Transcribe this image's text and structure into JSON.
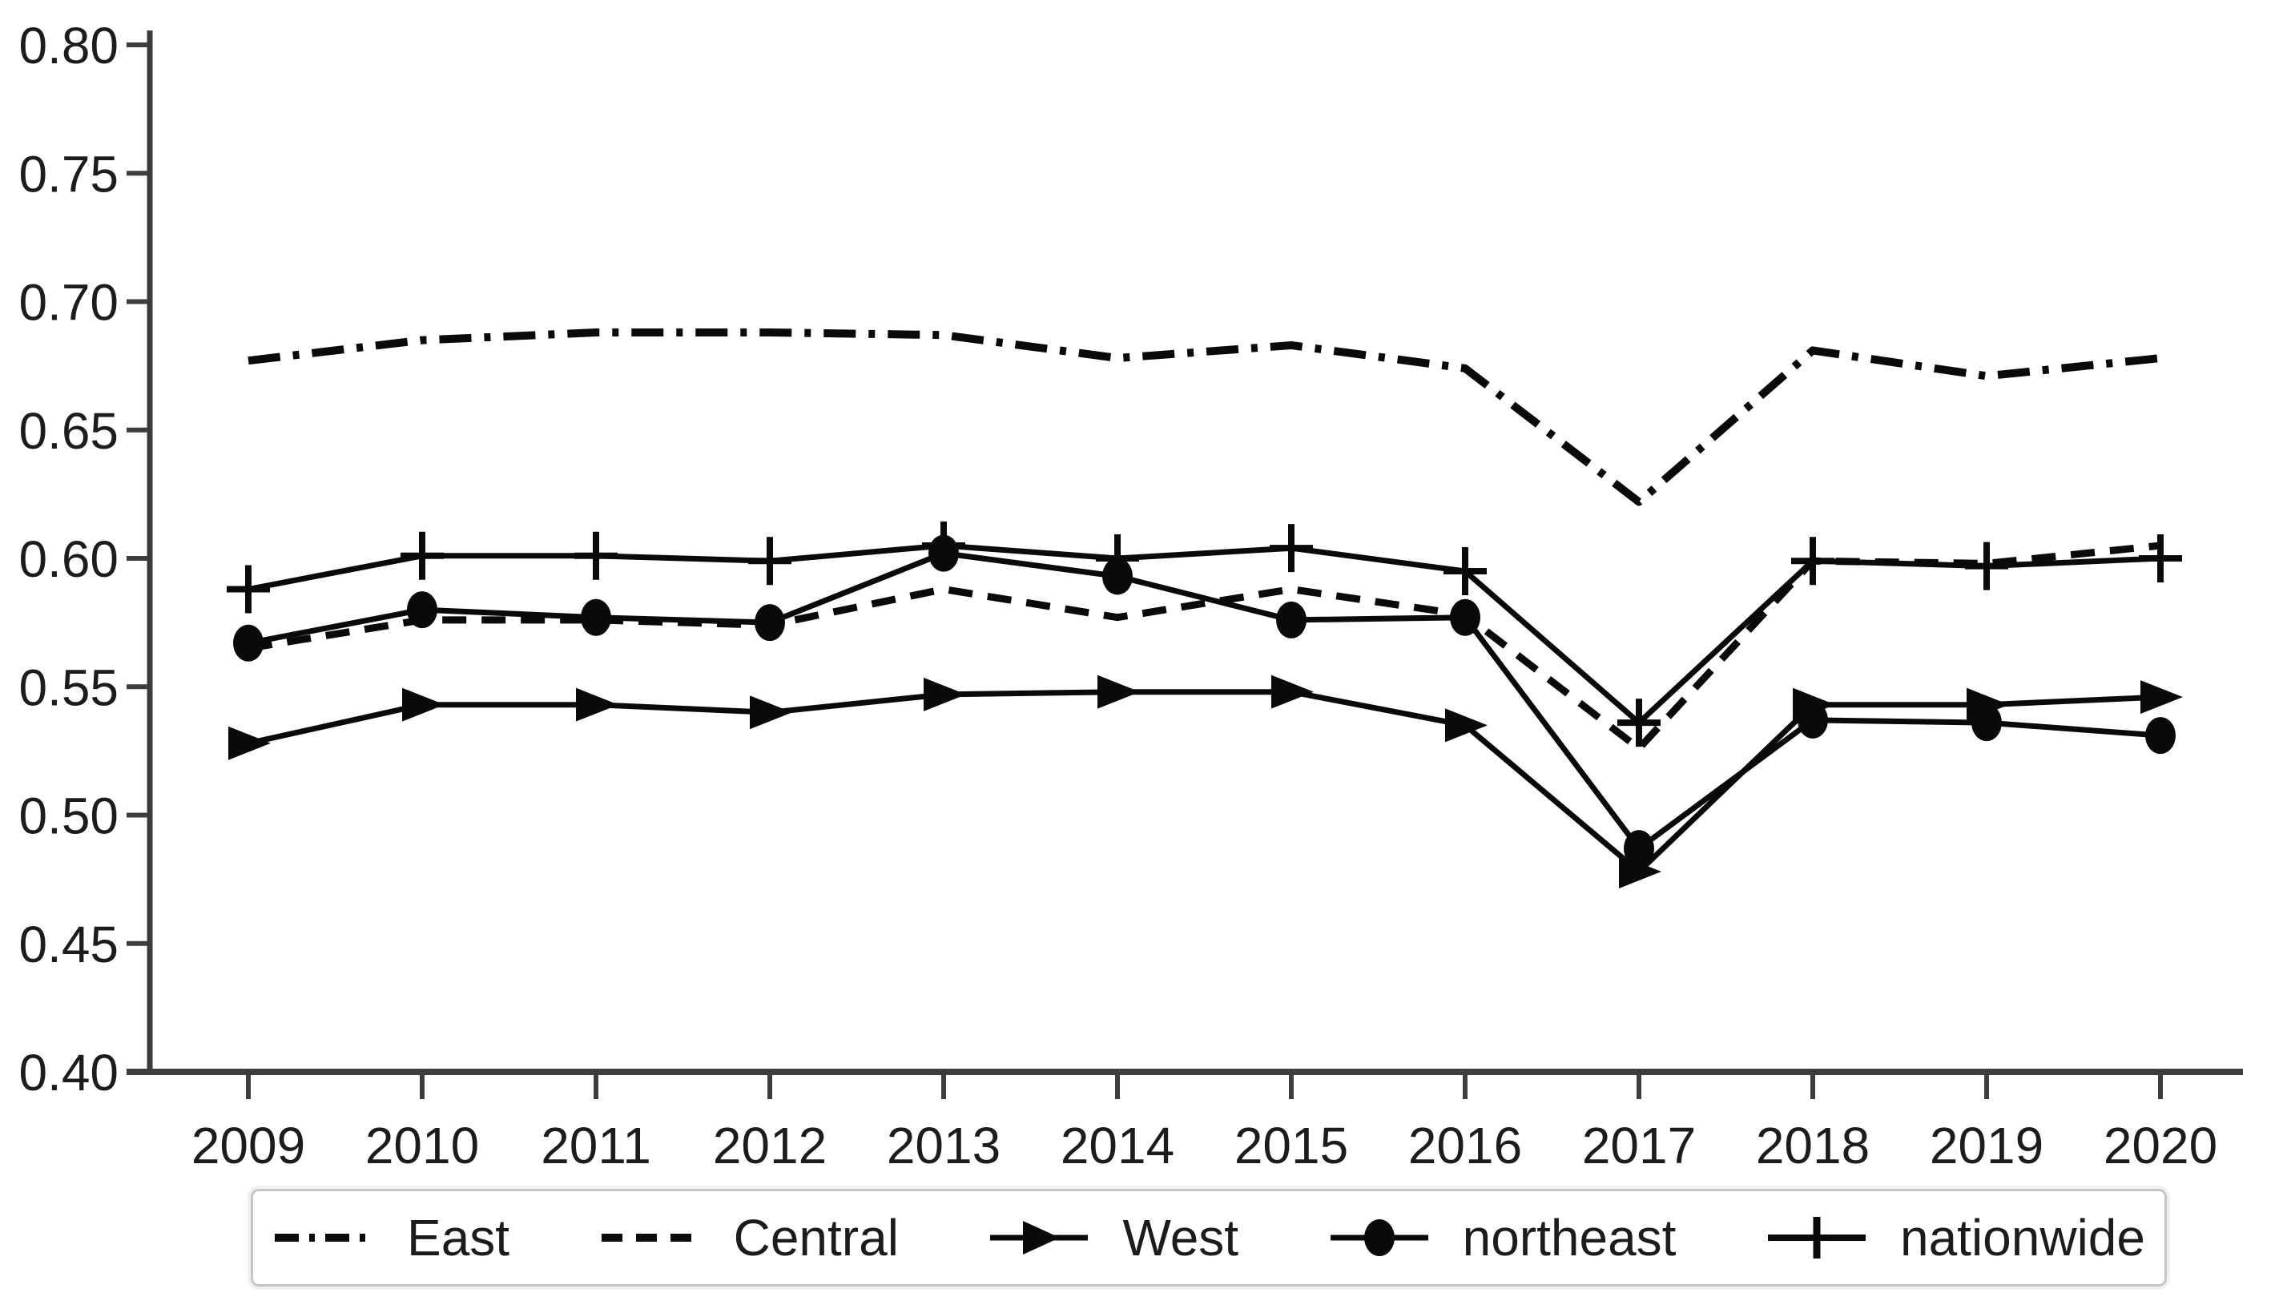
{
  "figure": {
    "title": "",
    "background": "#ffffff"
  },
  "colors": {
    "series_line": "#0a0a0a",
    "axis_line": "#3d3d3d",
    "tick_text": "#1c1c1c",
    "legend_border": "#c6c6c6"
  },
  "legend": {
    "position": "bottom",
    "items": [
      {
        "label": "East",
        "icon": "dash-dot-line-icon"
      },
      {
        "label": "Central",
        "icon": "dashed-line-icon"
      },
      {
        "label": "West",
        "icon": "triangle-right-icon"
      },
      {
        "label": "northeast",
        "icon": "circle-icon"
      },
      {
        "label": "nationwide",
        "icon": "plus-icon"
      }
    ]
  },
  "chart_data": {
    "type": "line",
    "title": "",
    "xlabel": "",
    "ylabel": "",
    "x": [
      2009,
      2010,
      2011,
      2012,
      2013,
      2014,
      2015,
      2016,
      2017,
      2018,
      2019,
      2020
    ],
    "ylim": [
      0.4,
      0.8
    ],
    "y_ticks": [
      0.4,
      0.45,
      0.5,
      0.55,
      0.6,
      0.65,
      0.7,
      0.75,
      0.8
    ],
    "grid": false,
    "legend_position": "bottom",
    "series": [
      {
        "name": "East",
        "style": "dash-dot",
        "marker": "none",
        "values": [
          0.677,
          0.685,
          0.688,
          0.688,
          0.687,
          0.678,
          0.683,
          0.674,
          0.622,
          0.681,
          0.671,
          0.678
        ]
      },
      {
        "name": "Central",
        "style": "dashed",
        "marker": "none",
        "values": [
          0.565,
          0.576,
          0.576,
          0.574,
          0.588,
          0.577,
          0.588,
          0.578,
          0.526,
          0.599,
          0.598,
          0.605
        ]
      },
      {
        "name": "West",
        "style": "solid",
        "marker": "triangle-right",
        "values": [
          0.528,
          0.543,
          0.543,
          0.54,
          0.547,
          0.548,
          0.548,
          0.535,
          0.478,
          0.543,
          0.543,
          0.546
        ]
      },
      {
        "name": "northeast",
        "style": "solid",
        "marker": "circle",
        "values": [
          0.567,
          0.58,
          0.577,
          0.575,
          0.602,
          0.593,
          0.576,
          0.577,
          0.487,
          0.537,
          0.536,
          0.531
        ]
      },
      {
        "name": "nationwide",
        "style": "solid",
        "marker": "plus",
        "values": [
          0.588,
          0.601,
          0.601,
          0.599,
          0.605,
          0.6,
          0.604,
          0.595,
          0.536,
          0.599,
          0.597,
          0.6
        ]
      }
    ]
  }
}
